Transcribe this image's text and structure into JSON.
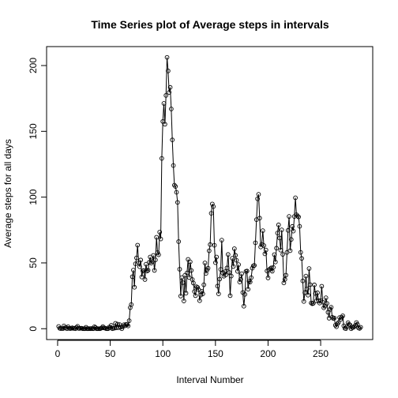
{
  "chart_data": {
    "type": "line",
    "title": "Time Series plot of Average steps in intervals",
    "x_label": "Interval Number",
    "y_label": "Average steps for all days",
    "xlim": [
      -10.48,
      299.48
    ],
    "ylim": [
      -8.25,
      214.4
    ],
    "xticks": [
      0,
      50,
      100,
      150,
      200,
      250
    ],
    "yticks": [
      0,
      50,
      100,
      150,
      200
    ],
    "color": "#000000",
    "x": [
      1,
      2,
      3,
      4,
      5,
      6,
      7,
      8,
      9,
      10,
      11,
      12,
      13,
      14,
      15,
      16,
      17,
      18,
      19,
      20,
      21,
      22,
      23,
      24,
      25,
      26,
      27,
      28,
      29,
      30,
      31,
      32,
      33,
      34,
      35,
      36,
      37,
      38,
      39,
      40,
      41,
      42,
      43,
      44,
      45,
      46,
      47,
      48,
      49,
      50,
      51,
      52,
      53,
      54,
      55,
      56,
      57,
      58,
      59,
      60,
      61,
      62,
      63,
      64,
      65,
      66,
      67,
      68,
      69,
      70,
      71,
      72,
      73,
      74,
      75,
      76,
      77,
      78,
      79,
      80,
      81,
      82,
      83,
      84,
      85,
      86,
      87,
      88,
      89,
      90,
      91,
      92,
      93,
      94,
      95,
      96,
      97,
      98,
      99,
      100,
      101,
      102,
      103,
      104,
      105,
      106,
      107,
      108,
      109,
      110,
      111,
      112,
      113,
      114,
      115,
      116,
      117,
      118,
      119,
      120,
      121,
      122,
      123,
      124,
      125,
      126,
      127,
      128,
      129,
      130,
      131,
      132,
      133,
      134,
      135,
      136,
      137,
      138,
      139,
      140,
      141,
      142,
      143,
      144,
      145,
      146,
      147,
      148,
      149,
      150,
      151,
      152,
      153,
      154,
      155,
      156,
      157,
      158,
      159,
      160,
      161,
      162,
      163,
      164,
      165,
      166,
      167,
      168,
      169,
      170,
      171,
      172,
      173,
      174,
      175,
      176,
      177,
      178,
      179,
      180,
      181,
      182,
      183,
      184,
      185,
      186,
      187,
      188,
      189,
      190,
      191,
      192,
      193,
      194,
      195,
      196,
      197,
      198,
      199,
      200,
      201,
      202,
      203,
      204,
      205,
      206,
      207,
      208,
      209,
      210,
      211,
      212,
      213,
      214,
      215,
      216,
      217,
      218,
      219,
      220,
      221,
      222,
      223,
      224,
      225,
      226,
      227,
      228,
      229,
      230,
      231,
      232,
      233,
      234,
      235,
      236,
      237,
      238,
      239,
      240,
      241,
      242,
      243,
      244,
      245,
      246,
      247,
      248,
      249,
      250,
      251,
      252,
      253,
      254,
      255,
      256,
      257,
      258,
      259,
      260,
      261,
      262,
      263,
      264,
      265,
      266,
      267,
      268,
      269,
      270,
      271,
      272,
      273,
      274,
      275,
      276,
      277,
      278,
      279,
      280,
      281,
      282,
      283,
      284,
      285,
      286,
      287,
      288
    ],
    "values": [
      1.7,
      0.3,
      0.1,
      0.2,
      0.1,
      2.1,
      0.5,
      0.9,
      0,
      1.5,
      0.3,
      0.1,
      0.3,
      0.7,
      0.2,
      0.3,
      0,
      1.1,
      1.8,
      0.2,
      0.2,
      0.4,
      0.3,
      0,
      0,
      0,
      1.1,
      0,
      0,
      0.1,
      0,
      0.2,
      0,
      0,
      1.5,
      0.9,
      0,
      0,
      0,
      0,
      0.2,
      0.6,
      1.6,
      0.6,
      0.5,
      0.1,
      0,
      0,
      1.2,
      0.9,
      2.6,
      0,
      0.3,
      0.4,
      4.1,
      0.7,
      3.5,
      0.8,
      3.1,
      1.1,
      0,
      1.6,
      3,
      2.2,
      3.3,
      3,
      2.1,
      6.1,
      16,
      18.3,
      39.5,
      44.5,
      31.5,
      49.3,
      53.8,
      63.5,
      50,
      47.1,
      52.2,
      39.3,
      44,
      44.2,
      37.4,
      49,
      43.8,
      44.4,
      50.5,
      54.5,
      49.9,
      51,
      55.7,
      44.3,
      52.3,
      69.5,
      57.8,
      56.2,
      73.4,
      68.2,
      129.4,
      157.5,
      171.2,
      155.4,
      177.3,
      206.2,
      195.9,
      179.6,
      183.4,
      167,
      143.5,
      124,
      109.1,
      108.1,
      103.7,
      96,
      66.2,
      45.2,
      24.8,
      38.8,
      35,
      21.1,
      40.6,
      27,
      42.4,
      52.7,
      38.9,
      50.8,
      44.3,
      37.4,
      34.7,
      28.3,
      25.1,
      31.9,
      31.4,
      29.7,
      21.3,
      25.5,
      28.4,
      26.5,
      33.4,
      50,
      42,
      44.6,
      46,
      59.2,
      63.9,
      87.7,
      94.8,
      92.8,
      63.4,
      50.2,
      54.5,
      32.4,
      26.5,
      37.7,
      45.1,
      67.3,
      42.3,
      39.9,
      43.3,
      41,
      46.2,
      56.4,
      42.8,
      25.1,
      40,
      53.5,
      47.3,
      60.8,
      55.8,
      52,
      43.6,
      48.7,
      35.5,
      37.5,
      41.8,
      27.5,
      17.1,
      26.1,
      43.6,
      43.8,
      30,
      36.1,
      35.5,
      38.8,
      46,
      47.8,
      48.1,
      65.3,
      82.9,
      98.7,
      102.1,
      84,
      62.1,
      64.1,
      74.5,
      63.2,
      56.9,
      59.8,
      43.9,
      38.6,
      44.7,
      45.5,
      46.2,
      43.7,
      46.6,
      56.3,
      50.7,
      61.2,
      72.7,
      78.9,
      68.9,
      59.7,
      75.1,
      56.5,
      34.8,
      37.5,
      40.7,
      58,
      74.7,
      85.3,
      59.3,
      67.8,
      77.7,
      74.2,
      85.3,
      99.5,
      86.6,
      85.6,
      84.9,
      77.8,
      58,
      53.4,
      36.3,
      20.7,
      27.4,
      40,
      30.2,
      25.5,
      45.7,
      33.5,
      19.6,
      19,
      19.3,
      33.3,
      26.8,
      21.2,
      27.3,
      21.3,
      19.5,
      21.3,
      32.3,
      20.2,
      15.9,
      17.2,
      23.5,
      19.2,
      12.5,
      8,
      14.7,
      16.3,
      8.7,
      7.8,
      8.1,
      2.6,
      1.5,
      3.7,
      4.8,
      8.5,
      7.1,
      8.7,
      9.8,
      2.2,
      0.3,
      0.1,
      1.6,
      4.6,
      3.3,
      2.8,
      0,
      0.8,
      1,
      1.6,
      2.6,
      4.7,
      3.3,
      0.6,
      0.2,
      1.1
    ]
  }
}
